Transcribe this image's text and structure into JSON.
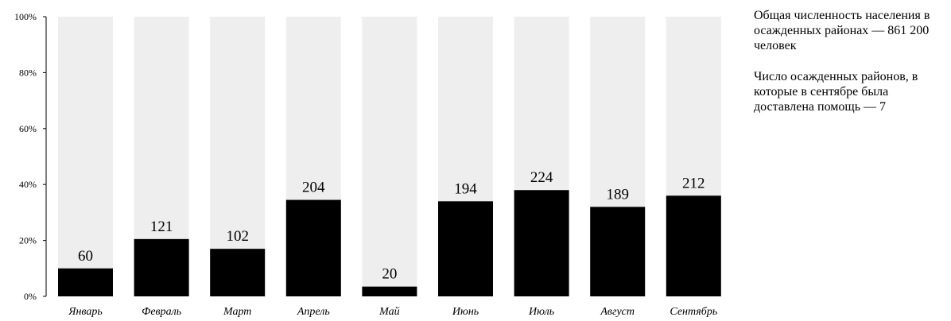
{
  "chart_data": {
    "type": "bar",
    "categories": [
      "Январь",
      "Февраль",
      "Март",
      "Апрель",
      "Май",
      "Июнь",
      "Июль",
      "Август",
      "Сентябрь"
    ],
    "values_percent": [
      10,
      20.5,
      17,
      34.5,
      3.5,
      34,
      38,
      32,
      36
    ],
    "data_labels": [
      "60",
      "121",
      "102",
      "204",
      "20",
      "194",
      "224",
      "189",
      "212"
    ],
    "ylim": [
      0,
      100
    ],
    "yticks": [
      "0%",
      "20%",
      "40%",
      "60%",
      "80%",
      "100%"
    ],
    "colors": {
      "bar": "#000000",
      "background_bar": "#eeeeee"
    }
  },
  "notes": [
    "Общая численность населения в осажденных районах — 861 200 человек",
    "Число осажденных районов, в которые в сентябре была доставлена помощь — 7"
  ]
}
